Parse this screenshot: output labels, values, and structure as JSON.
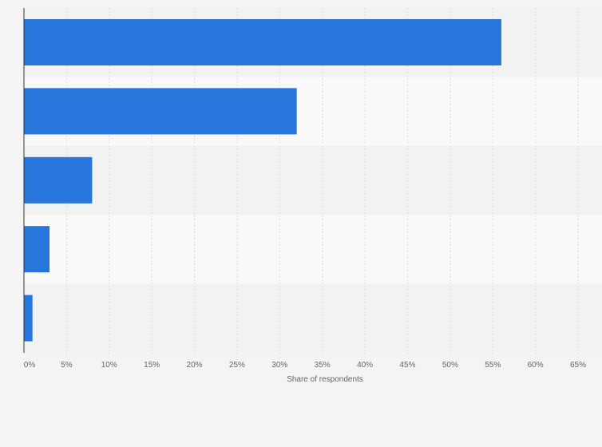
{
  "chart_data": {
    "type": "bar",
    "orientation": "horizontal",
    "categories": [
      "",
      "",
      "",
      "",
      ""
    ],
    "values": [
      56,
      32,
      8,
      3,
      1
    ],
    "title": "",
    "xlabel": "Share of respondents",
    "ylabel": "",
    "xlim": [
      0,
      65
    ],
    "ticks": [
      0,
      5,
      10,
      15,
      20,
      25,
      30,
      35,
      40,
      45,
      50,
      55,
      60,
      65
    ],
    "tick_labels": [
      "0%",
      "5%",
      "10%",
      "15%",
      "20%",
      "25%",
      "30%",
      "35%",
      "40%",
      "45%",
      "50%",
      "55%",
      "60%",
      "65%"
    ],
    "grid": true,
    "colors": {
      "bar": "#2776dc",
      "band_dark": "#f2f2f2",
      "band_light": "#f9f9f9",
      "grid": "#dddddd",
      "axis": "#333333",
      "text": "#666666",
      "background": "#f4f4f4"
    }
  }
}
